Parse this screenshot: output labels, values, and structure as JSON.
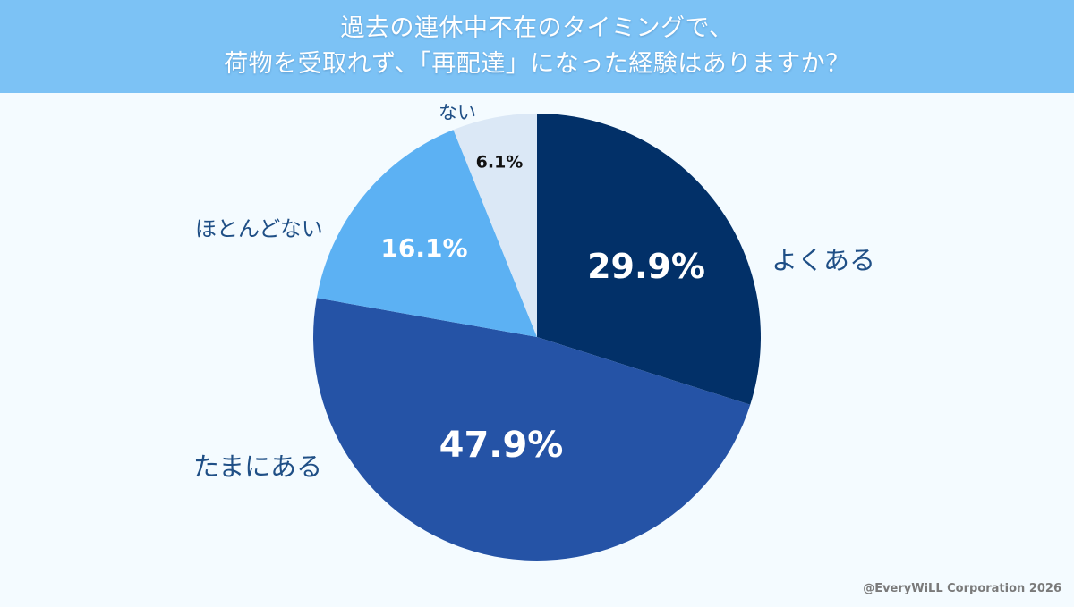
{
  "header": {
    "title_line1": "過去の連休中不在のタイミングで、",
    "title_line2": "荷物を受取れず、「再配達」になった経験はありますか？",
    "background": "#7cc2f5"
  },
  "chart_data": {
    "type": "pie",
    "title": "過去の連休中不在のタイミングで、荷物を受取れず、「再配達」になった経験はありますか？",
    "categories": [
      "よくある",
      "たまにある",
      "ほとんどない",
      "ない"
    ],
    "values": [
      29.9,
      47.9,
      16.1,
      6.1
    ],
    "unit": "%",
    "colors": [
      "#023068",
      "#2553a6",
      "#5cb1f3",
      "#dbe8f6"
    ],
    "start_angle": "12 o'clock, clockwise",
    "legend_position": "labels outside slices"
  },
  "slices": [
    {
      "label": "よくある",
      "value_text": "29.9%",
      "color": "#023068",
      "text_color": "#ffffff"
    },
    {
      "label": "たまにある",
      "value_text": "47.9%",
      "color": "#2553a6",
      "text_color": "#ffffff"
    },
    {
      "label": "ほとんどない",
      "value_text": "16.1%",
      "color": "#5cb1f3",
      "text_color": "#ffffff"
    },
    {
      "label": "ない",
      "value_text": "6.1%",
      "color": "#dbe8f6",
      "text_color": "#111111"
    }
  ],
  "footer": {
    "credit": "@EveryWiLL Corporation 2026"
  }
}
